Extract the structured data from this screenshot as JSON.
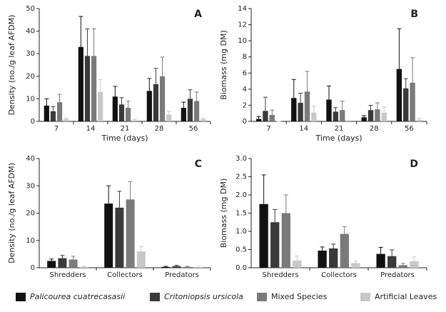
{
  "chart_data": [
    {
      "type": "bar",
      "panel_label": "A",
      "y_label": "Density (no./g leaf AFDM)",
      "x_label": "Time (days)",
      "categories": [
        "7",
        "14",
        "21",
        "28",
        "56"
      ],
      "ylim": [
        0,
        50
      ],
      "yticks": [
        0,
        10,
        20,
        30,
        40,
        50
      ],
      "series": [
        {
          "color": "#111111",
          "values": [
            7,
            33,
            11,
            13.5,
            6
          ],
          "errors": [
            3,
            13.5,
            4.5,
            5.5,
            2.5
          ]
        },
        {
          "color": "#3a3a3a",
          "values": [
            4.5,
            29,
            7.5,
            16.5,
            10
          ],
          "errors": [
            2,
            12,
            3,
            7,
            4
          ]
        },
        {
          "color": "#7a7a7a",
          "values": [
            8.5,
            29,
            6,
            20,
            9
          ],
          "errors": [
            3.5,
            12,
            3,
            8.5,
            4
          ]
        },
        {
          "color": "#c8c8c8",
          "values": [
            1,
            13,
            0.5,
            3,
            1
          ],
          "errors": [
            0.5,
            5.5,
            0.5,
            1.5,
            0.5
          ]
        }
      ]
    },
    {
      "type": "bar",
      "panel_label": "B",
      "y_label": "Biomass (mg DM)",
      "x_label": "Time (days)",
      "categories": [
        "7",
        "14",
        "21",
        "28",
        "56"
      ],
      "ylim": [
        0,
        14
      ],
      "yticks": [
        0,
        2,
        4,
        6,
        8,
        10,
        12,
        14
      ],
      "series": [
        {
          "color": "#111111",
          "values": [
            0.3,
            2.9,
            2.7,
            0.5,
            6.5
          ],
          "errors": [
            0.3,
            2.3,
            1.7,
            0.2,
            5
          ]
        },
        {
          "color": "#3a3a3a",
          "values": [
            1.3,
            2.3,
            1.2,
            1.4,
            4.1
          ],
          "errors": [
            1.7,
            1.2,
            0.5,
            0.6,
            1.2
          ]
        },
        {
          "color": "#7a7a7a",
          "values": [
            0.8,
            3.7,
            1.4,
            1.5,
            4.8
          ],
          "errors": [
            0.6,
            2.5,
            1.1,
            0.8,
            3.1
          ]
        },
        {
          "color": "#c8c8c8",
          "values": [
            0,
            1.1,
            0.1,
            1.1,
            0.2
          ],
          "errors": [
            0,
            0.8,
            0,
            0.7,
            0.2
          ]
        }
      ]
    },
    {
      "type": "bar",
      "panel_label": "C",
      "y_label": "Density (no./g leaf AFDM)",
      "categories": [
        "Shredders",
        "Collectors",
        "Predators"
      ],
      "ylim": [
        0,
        40
      ],
      "yticks": [
        0,
        10,
        20,
        30,
        40
      ],
      "series": [
        {
          "color": "#111111",
          "values": [
            2.5,
            23.5,
            0.3
          ],
          "errors": [
            0.7,
            6.5,
            0.2
          ]
        },
        {
          "color": "#3a3a3a",
          "values": [
            3.5,
            22,
            0.6
          ],
          "errors": [
            1,
            6,
            0.3
          ]
        },
        {
          "color": "#7a7a7a",
          "values": [
            3,
            25,
            0.3
          ],
          "errors": [
            1.2,
            6.5,
            0.2
          ]
        },
        {
          "color": "#c8c8c8",
          "values": [
            0.3,
            6,
            0.2
          ],
          "errors": [
            0.2,
            1.8,
            0.1
          ]
        }
      ]
    },
    {
      "type": "bar",
      "panel_label": "D",
      "y_label": "Biomass (mg DM)",
      "categories": [
        "Shredders",
        "Collectors",
        "Predators"
      ],
      "ylim": [
        0,
        3
      ],
      "yticks": [
        {
          "value": 0,
          "label": "0.0"
        },
        0.5,
        {
          "value": 1,
          "label": "1.0"
        },
        1.5,
        {
          "value": 2,
          "label": "2.0"
        },
        2.5,
        {
          "value": 3,
          "label": "3.0"
        }
      ],
      "series": [
        {
          "color": "#111111",
          "values": [
            1.75,
            0.47,
            0.38
          ],
          "errors": [
            0.8,
            0.1,
            0.18
          ]
        },
        {
          "color": "#3a3a3a",
          "values": [
            1.25,
            0.53,
            0.32
          ],
          "errors": [
            0.35,
            0.12,
            0.17
          ]
        },
        {
          "color": "#7a7a7a",
          "values": [
            1.5,
            0.93,
            0.07
          ],
          "errors": [
            0.5,
            0.2,
            0.05
          ]
        },
        {
          "color": "#c8c8c8",
          "values": [
            0.2,
            0.13,
            0.18
          ],
          "errors": [
            0.12,
            0.05,
            0.12
          ]
        }
      ]
    }
  ],
  "legend": {
    "items": [
      {
        "name": "Palicourea cuatrecasasii",
        "color": "#111111",
        "italic": true
      },
      {
        "name": "Critoniopsis ursicola",
        "color": "#3a3a3a",
        "italic": true
      },
      {
        "name": "Mixed Species",
        "color": "#7a7a7a",
        "italic": false
      },
      {
        "name": "Artificial Leaves",
        "color": "#c8c8c8",
        "italic": false
      }
    ]
  }
}
